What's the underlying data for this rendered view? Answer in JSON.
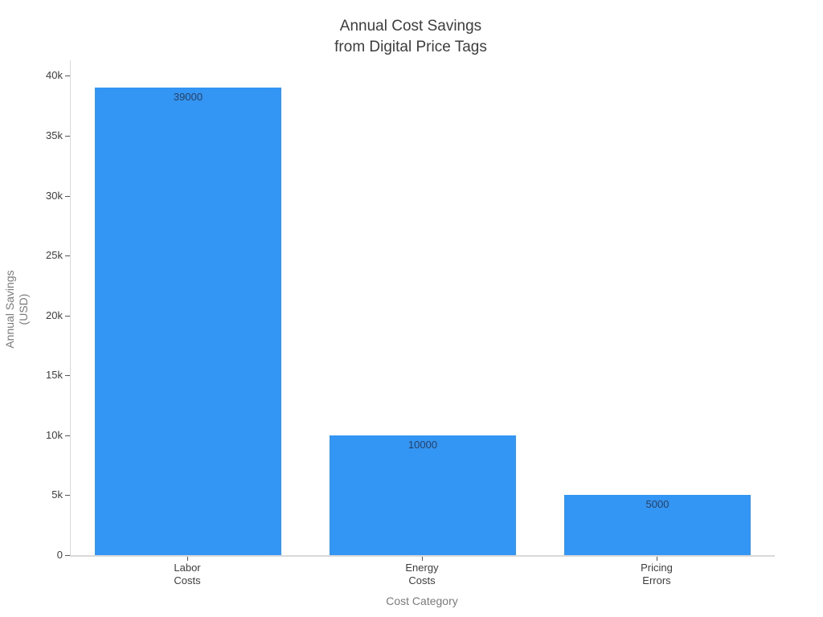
{
  "chart_data": {
    "type": "bar",
    "title": "Annual Cost Savings\nfrom Digital Price Tags",
    "categories": [
      "Labor\nCosts",
      "Energy\nCosts",
      "Pricing\nErrors"
    ],
    "values": [
      39000,
      10000,
      5000
    ],
    "bar_value_labels": [
      "39000",
      "10000",
      "5000"
    ],
    "xlabel": "Cost Category",
    "ylabel": "Annual Savings\n(USD)",
    "ylim": [
      0,
      41300
    ],
    "yticks": {
      "values": [
        0,
        5000,
        10000,
        15000,
        20000,
        25000,
        30000,
        35000,
        40000
      ],
      "labels": [
        "0",
        "5k",
        "10k",
        "15k",
        "20k",
        "25k",
        "30k",
        "35k",
        "40k"
      ]
    },
    "grid": false,
    "legend": "none",
    "colors": {
      "bar_fill": "#3496f4",
      "bar_value_text": "#2a3f5f",
      "axis_line": "#d9d9d9",
      "tick_mark": "#555555",
      "tick_text": "#3d3d3d",
      "axis_title_text": "#7a7a7a",
      "title_text": "#3d3d3d",
      "background": "#ffffff"
    }
  }
}
